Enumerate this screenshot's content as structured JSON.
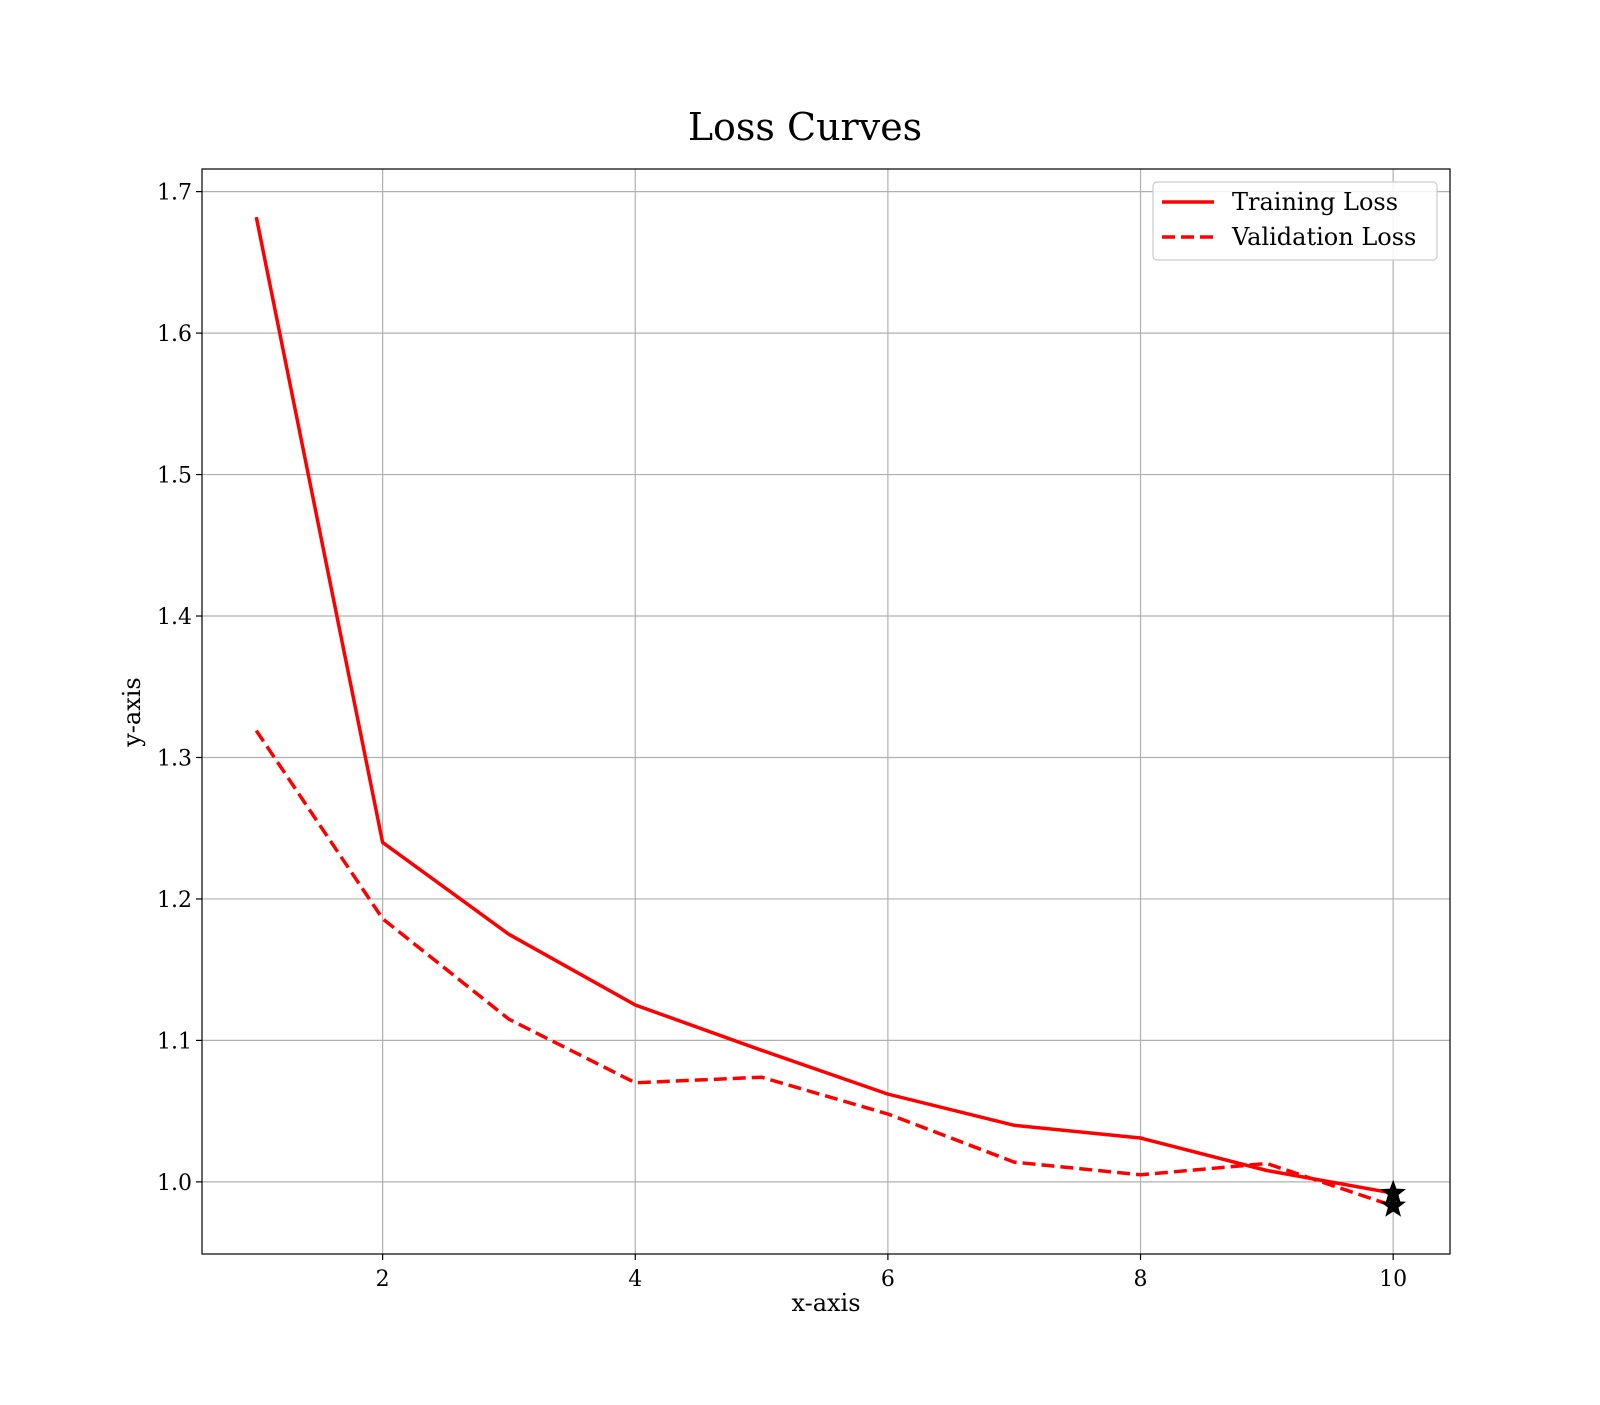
{
  "chart_data": {
    "type": "line",
    "title": "Loss Curves",
    "xlabel": "x-axis",
    "ylabel": "y-axis",
    "xlim": [
      0.57,
      10.45
    ],
    "ylim": [
      0.949,
      1.716
    ],
    "xticks": [
      2,
      4,
      6,
      8,
      10
    ],
    "yticks": [
      1.0,
      1.1,
      1.2,
      1.3,
      1.4,
      1.5,
      1.6,
      1.7
    ],
    "grid": true,
    "legend_position": "top-right",
    "x": [
      1,
      2,
      3,
      4,
      5,
      6,
      7,
      8,
      9,
      10
    ],
    "series": [
      {
        "name": "Training Loss",
        "style": "solid",
        "color": "#ff0000",
        "values": [
          1.682,
          1.24,
          1.175,
          1.125,
          1.093,
          1.062,
          1.04,
          1.031,
          1.008,
          0.992
        ]
      },
      {
        "name": "Validation Loss",
        "style": "dashed",
        "color": "#ff0000",
        "values": [
          1.319,
          1.186,
          1.115,
          1.07,
          1.074,
          1.048,
          1.014,
          1.005,
          1.013,
          0.983
        ]
      }
    ],
    "markers": [
      {
        "x": 10,
        "y": 0.992,
        "symbol": "star",
        "color": "#000000"
      },
      {
        "x": 10,
        "y": 0.983,
        "symbol": "star",
        "color": "#000000"
      }
    ]
  }
}
